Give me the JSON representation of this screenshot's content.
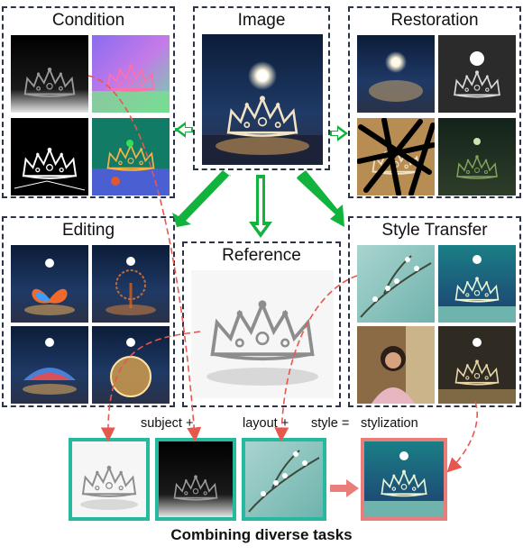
{
  "panels": {
    "condition": {
      "title": "Condition"
    },
    "image": {
      "title": "Image"
    },
    "restoration": {
      "title": "Restoration"
    },
    "editing": {
      "title": "Editing"
    },
    "reference": {
      "title": "Reference"
    },
    "style_transfer": {
      "title": "Style Transfer"
    }
  },
  "composition": {
    "subject": "subject +",
    "layout": "layout +",
    "style": "style =",
    "result": "stylization"
  },
  "footer": "Combining diverse tasks",
  "colors": {
    "green_arrow": "#12b33c",
    "teal_border": "#27b8a0",
    "pink_border": "#ea7c7a",
    "dashed_red": "#e8574e",
    "panel_border": "#2b3346"
  }
}
